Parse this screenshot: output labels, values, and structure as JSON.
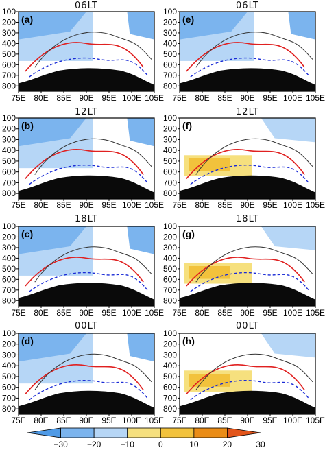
{
  "colors": {
    "cold3": "#4f9ae6",
    "cold2": "#7bb4ee",
    "cold1": "#b6d6f6",
    "neutral": "#ffffff",
    "warm1": "#f6e07e",
    "warm2": "#f2c23c",
    "warm3": "#ea8c16",
    "warm4": "#e2541a",
    "contour_pos": "#e02020",
    "contour_neg": "#1a2bd6",
    "contour_zero": "#333333",
    "terrain": "#0a0a0a"
  },
  "chart_data": [
    {
      "type": "heatmap",
      "panel_label": "(a)",
      "time_title": "06LT",
      "fill": "cold"
    },
    {
      "type": "heatmap",
      "panel_label": "(e)",
      "time_title": "06LT",
      "fill": "cold"
    },
    {
      "type": "heatmap",
      "panel_label": "(b)",
      "time_title": "12LT",
      "fill": "cold"
    },
    {
      "type": "heatmap",
      "panel_label": "(f)",
      "time_title": "12LT",
      "fill": "warm"
    },
    {
      "type": "heatmap",
      "panel_label": "(c)",
      "time_title": "18LT",
      "fill": "cold"
    },
    {
      "type": "heatmap",
      "panel_label": "(g)",
      "time_title": "18LT",
      "fill": "warm"
    },
    {
      "type": "heatmap",
      "panel_label": "(d)",
      "time_title": "00LT",
      "fill": "cold"
    },
    {
      "type": "heatmap",
      "panel_label": "(h)",
      "time_title": "00LT",
      "fill": "warm"
    }
  ],
  "axes": {
    "x_ticks": [
      "75E",
      "80E",
      "85E",
      "90E",
      "95E",
      "100E",
      "105E"
    ],
    "x_values": [
      75,
      80,
      85,
      90,
      95,
      100,
      105
    ],
    "y_ticks": [
      "100",
      "200",
      "300",
      "400",
      "500",
      "600",
      "700",
      "800"
    ],
    "y_values": [
      100,
      200,
      300,
      400,
      500,
      600,
      700,
      800
    ],
    "ylim": [
      100,
      850
    ],
    "xlim": [
      75,
      105
    ]
  },
  "colorbar": {
    "labels": [
      "−30",
      "−20",
      "−10",
      "0",
      "10",
      "20",
      "30"
    ],
    "values": [
      -30,
      -20,
      -10,
      0,
      10,
      20,
      30
    ]
  }
}
